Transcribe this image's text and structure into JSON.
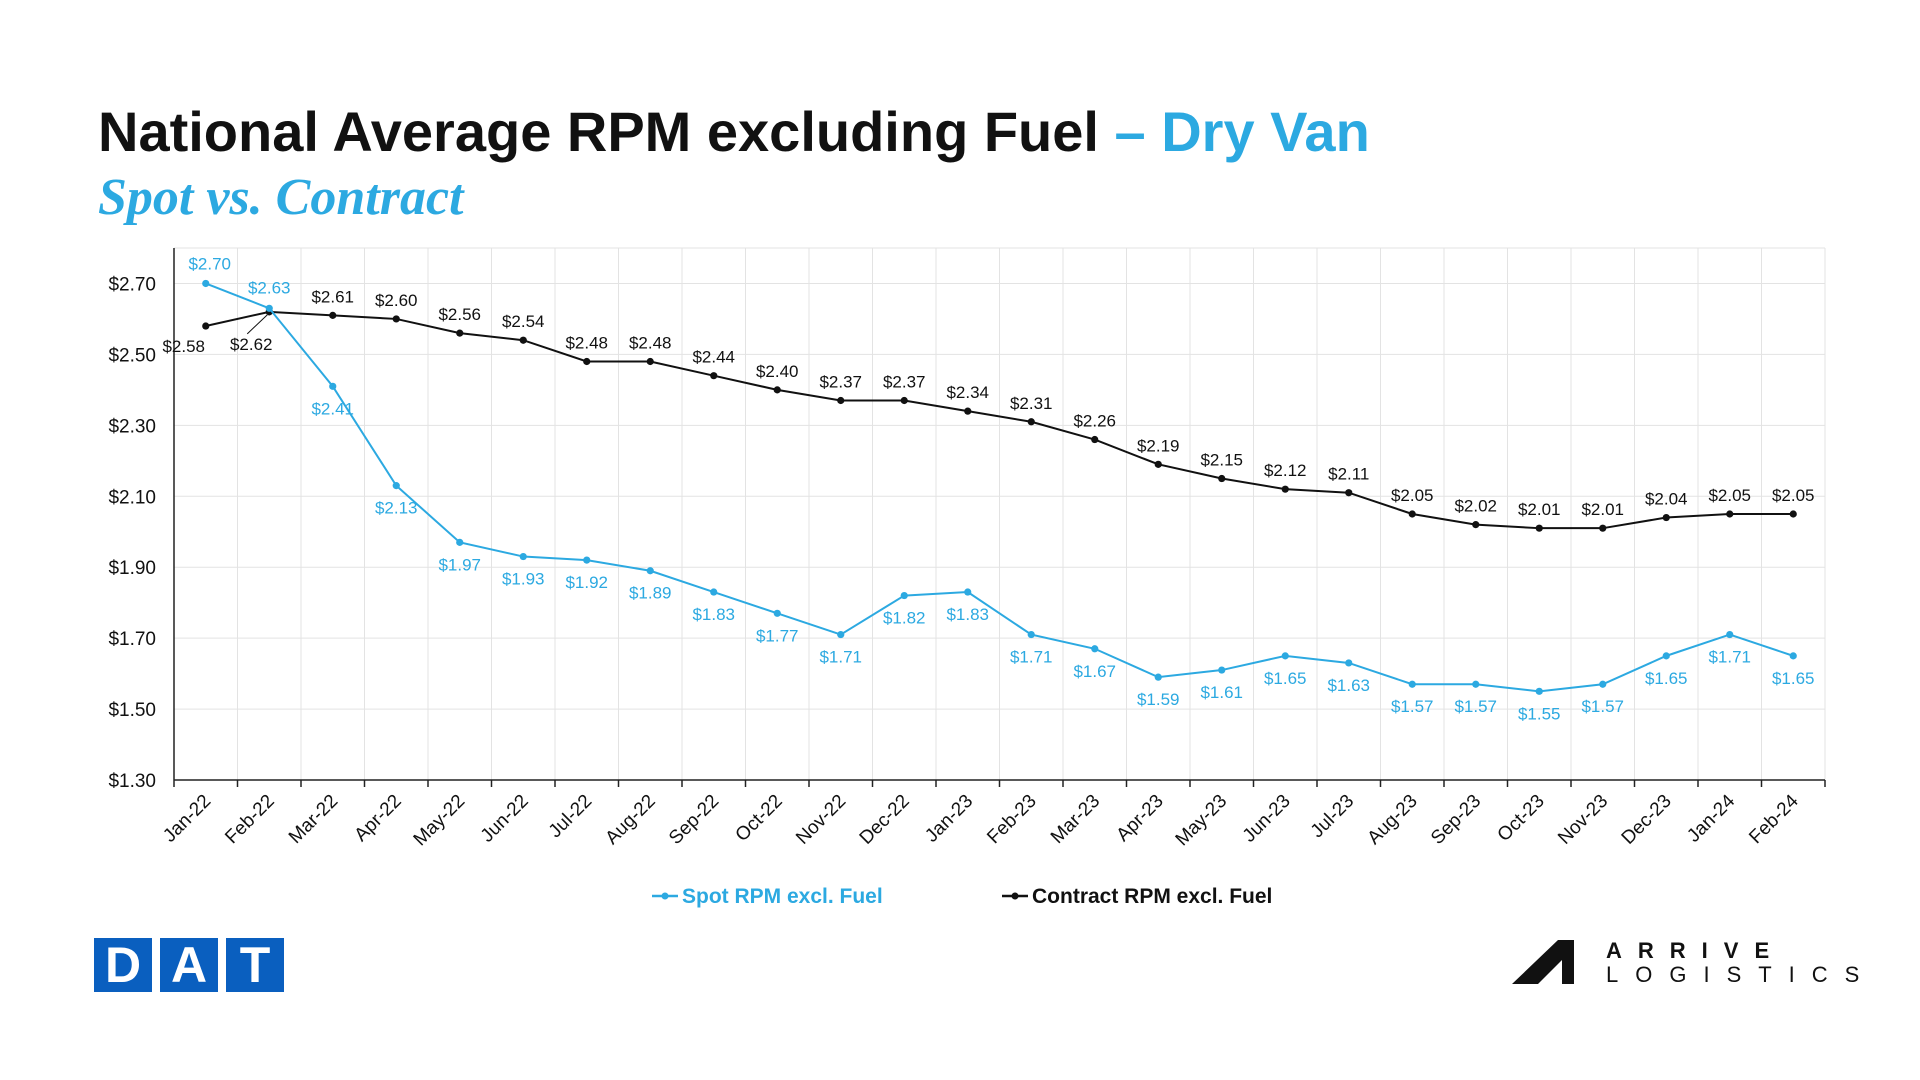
{
  "header": {
    "title_main": "National Average RPM excluding Fuel",
    "title_accent": "– Dry Van",
    "subtitle": "Spot vs. Contract"
  },
  "colors": {
    "spot": "#2ca9e1",
    "contract": "#111111",
    "grid": "#e3e3e3",
    "dat_blue": "#0a5fbf"
  },
  "chart_data": {
    "type": "line",
    "title": "National Average RPM excluding Fuel – Dry Van",
    "subtitle": "Spot vs. Contract",
    "categories": [
      "Jan-22",
      "Feb-22",
      "Mar-22",
      "Apr-22",
      "May-22",
      "Jun-22",
      "Jul-22",
      "Aug-22",
      "Sep-22",
      "Oct-22",
      "Nov-22",
      "Dec-22",
      "Jan-23",
      "Feb-23",
      "Mar-23",
      "Apr-23",
      "May-23",
      "Jun-23",
      "Jul-23",
      "Aug-23",
      "Sep-23",
      "Oct-23",
      "Nov-23",
      "Dec-23",
      "Jan-24",
      "Feb-24"
    ],
    "series": [
      {
        "name": "Spot RPM excl. Fuel",
        "color": "#2ca9e1",
        "values": [
          2.7,
          2.63,
          2.41,
          2.13,
          1.97,
          1.93,
          1.92,
          1.89,
          1.83,
          1.77,
          1.71,
          1.82,
          1.83,
          1.71,
          1.67,
          1.59,
          1.61,
          1.65,
          1.63,
          1.57,
          1.57,
          1.55,
          1.57,
          1.65,
          1.71,
          1.65
        ],
        "labels": [
          "$2.70",
          "$2.63",
          "$2.41",
          "$2.13",
          "$1.97",
          "$1.93",
          "$1.92",
          "$1.89",
          "$1.83",
          "$1.77",
          "$1.71",
          "$1.82",
          "$1.83",
          "$1.71",
          "$1.67",
          "$1.59",
          "$1.61",
          "$1.65",
          "$1.63",
          "$1.57",
          "$1.57",
          "$1.55",
          "$1.57",
          "$1.65",
          "$1.71",
          "$1.65"
        ]
      },
      {
        "name": "Contract RPM excl. Fuel",
        "color": "#111111",
        "values": [
          2.58,
          2.62,
          2.61,
          2.6,
          2.56,
          2.54,
          2.48,
          2.48,
          2.44,
          2.4,
          2.37,
          2.37,
          2.34,
          2.31,
          2.26,
          2.19,
          2.15,
          2.12,
          2.11,
          2.05,
          2.02,
          2.01,
          2.01,
          2.04,
          2.05,
          2.05
        ],
        "labels": [
          "$2.58",
          "$2.62",
          "$2.61",
          "$2.60",
          "$2.56",
          "$2.54",
          "$2.48",
          "$2.48",
          "$2.44",
          "$2.40",
          "$2.37",
          "$2.37",
          "$2.34",
          "$2.31",
          "$2.26",
          "$2.19",
          "$2.15",
          "$2.12",
          "$2.11",
          "$2.05",
          "$2.02",
          "$2.01",
          "$2.01",
          "$2.04",
          "$2.05",
          "$2.05"
        ]
      }
    ],
    "ylim": [
      1.3,
      2.8
    ],
    "yticks": [
      1.3,
      1.5,
      1.7,
      1.9,
      2.1,
      2.3,
      2.5,
      2.7
    ],
    "ytick_labels": [
      "$1.30",
      "$1.50",
      "$1.70",
      "$1.90",
      "$2.10",
      "$2.30",
      "$2.50",
      "$2.70"
    ],
    "grid": true,
    "legend": "bottom-center"
  },
  "logos": {
    "dat": {
      "letters": [
        "D",
        "A",
        "T"
      ],
      "mark": "®"
    },
    "arrive": {
      "line1": "ARRIVE",
      "line2": "LOGISTICS",
      "icon": "arrive-a-mark-icon"
    }
  }
}
